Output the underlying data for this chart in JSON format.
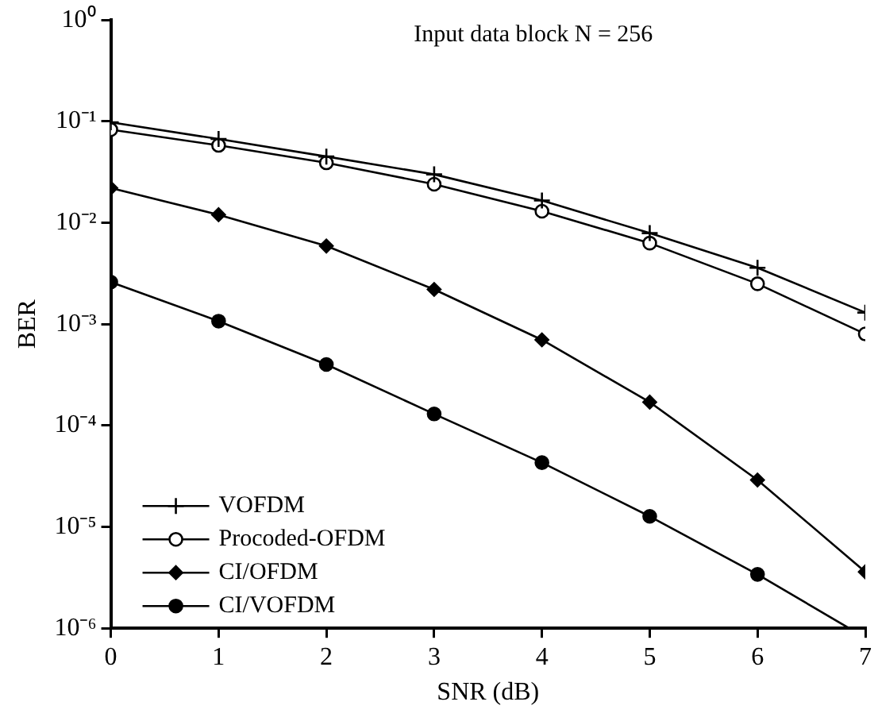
{
  "chart_data": {
    "type": "line",
    "xlabel": "SNR (dB)",
    "ylabel": "BER",
    "annotations": [
      "Input data block N = 256"
    ],
    "x": [
      0,
      1,
      2,
      3,
      4,
      5,
      6,
      7
    ],
    "series": [
      {
        "name": "VOFDM",
        "color": "#000000",
        "marker": "cross",
        "values": [
          0.098,
          0.067,
          0.045,
          0.03,
          0.0166,
          0.0079,
          0.0036,
          0.0013
        ]
      },
      {
        "name": "Procoded-OFDM",
        "color": "#000000",
        "marker": "circle",
        "values": [
          0.083,
          0.058,
          0.039,
          0.024,
          0.013,
          0.0063,
          0.0025,
          0.0008
        ]
      },
      {
        "name": "CI/OFDM",
        "color": "#000000",
        "marker": "diamond",
        "values": [
          0.022,
          0.012,
          0.0059,
          0.0022,
          0.0007,
          0.00017,
          2.9e-05,
          3.6e-06
        ]
      },
      {
        "name": "CI/VOFDM",
        "color": "#000000",
        "marker": "circle",
        "x": [
          0,
          1,
          2,
          3,
          4,
          5,
          6,
          6.85
        ],
        "values": [
          0.0026,
          0.00107,
          0.0004,
          0.00013,
          4.3e-05,
          1.27e-05,
          3.4e-06,
          1e-06
        ]
      }
    ],
    "log": "y",
    "xlim": [
      0,
      7
    ],
    "xticks": [
      0,
      1,
      2,
      3,
      4,
      5,
      6,
      7
    ],
    "ylim": [
      1e-06,
      1
    ],
    "yticks": [
      {
        "value": 1,
        "label": "10⁰"
      },
      {
        "value": 0.1,
        "label": "10⁻¹"
      },
      {
        "value": 0.01,
        "label": "10⁻²"
      },
      {
        "value": 0.001,
        "label": "10⁻³"
      },
      {
        "value": 0.0001,
        "label": "10⁻⁴"
      },
      {
        "value": 1e-05,
        "label": "10⁻⁵"
      },
      {
        "value": 1e-06,
        "label": "10⁻⁶"
      }
    ],
    "grid": false,
    "legend": "bottom left",
    "line_style": "solid"
  }
}
